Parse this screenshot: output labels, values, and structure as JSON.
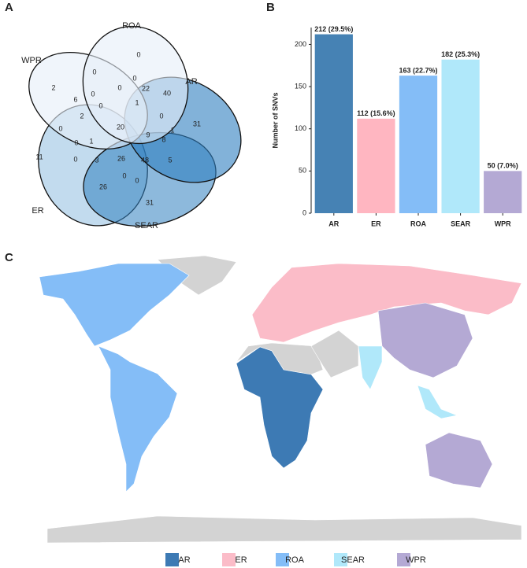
{
  "panel_labels": [
    "A",
    "B",
    "C"
  ],
  "chart_data": [
    {
      "type": "venn",
      "sets": [
        "ROA",
        "WPR",
        "AR",
        "ER",
        "SEAR"
      ],
      "values": [
        0,
        2,
        31,
        11,
        31,
        0,
        0,
        22,
        40,
        6,
        0,
        0,
        1,
        2,
        0,
        20,
        0,
        1,
        0,
        9,
        8,
        0,
        1,
        26,
        48,
        5,
        0,
        3,
        26,
        0,
        0
      ]
    },
    {
      "type": "bar",
      "y_label": "Number of SNVs",
      "categories": [
        "AR",
        "ER",
        "ROA",
        "SEAR",
        "WPR"
      ],
      "values": [
        212,
        112,
        163,
        182,
        50
      ],
      "value_labels": [
        "212 (29.5%)",
        "112 (15.6%)",
        "163 (22.7%)",
        "182 (25.3%)",
        "50 (7.0%)"
      ],
      "colors": [
        "#4682b4",
        "#ffb6c1",
        "#84bdf7",
        "#b0e8fa",
        "#b4a9d4"
      ],
      "ylim": [
        0,
        220
      ],
      "yticks": [
        0,
        50,
        100,
        150,
        200
      ]
    },
    {
      "type": "map",
      "series": [
        {
          "name": "AR",
          "color": "#3d7ab4"
        },
        {
          "name": "ER",
          "color": "#fbbcc8"
        },
        {
          "name": "ROA",
          "color": "#84bdf7"
        },
        {
          "name": "SEAR",
          "color": "#b0e8fa"
        },
        {
          "name": "WPR",
          "color": "#b4a9d4"
        }
      ]
    }
  ]
}
